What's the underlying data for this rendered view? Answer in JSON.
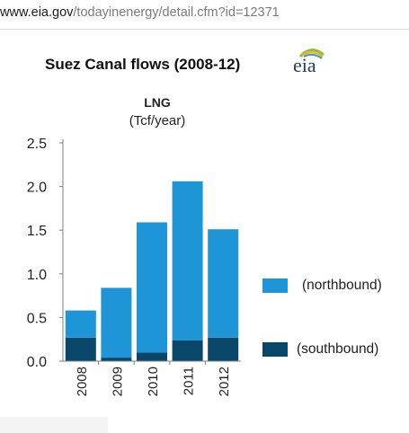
{
  "browser": {
    "url_host": "www.eia.gov",
    "url_path": "/todayinenergy/detail.cfm?id=12371"
  },
  "logo": {
    "text": "eia",
    "icon": "eia-logo-icon"
  },
  "colors": {
    "northbound": "#1e95d6",
    "southbound": "#08476a",
    "axis": "#7f7f7f"
  },
  "chart_data": {
    "type": "bar",
    "stacked": true,
    "title": "Suez Canal  flows (2008-12)",
    "panel_title": "LNG",
    "ylabel": "(Tcf/year)",
    "categories": [
      "2008",
      "2009",
      "2010",
      "2011",
      "2012"
    ],
    "series": [
      {
        "name": "(southbound)",
        "values": [
          0.27,
          0.04,
          0.1,
          0.24,
          0.27
        ]
      },
      {
        "name": "(northbound)",
        "values": [
          0.31,
          0.8,
          1.49,
          1.82,
          1.24
        ]
      }
    ],
    "ylim": [
      0,
      2.5
    ],
    "yticks": [
      "0.0",
      "0.5",
      "1.0",
      "1.5",
      "2.0",
      "2.5"
    ],
    "grid": false,
    "legend_position": "right"
  }
}
